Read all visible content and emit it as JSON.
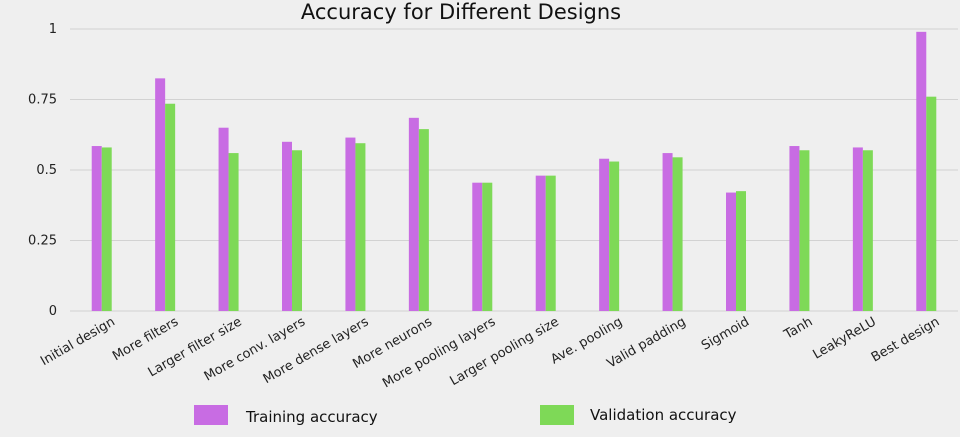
{
  "chart_data": {
    "type": "bar",
    "title": "Accuracy for Different Designs",
    "xlabel": "",
    "ylabel": "",
    "ylim": [
      0,
      1
    ],
    "yticks": [
      "0",
      "0.25",
      "0.5",
      "0.75",
      "1"
    ],
    "grid": true,
    "legend_position": "bottom",
    "categories": [
      "Initial design",
      "More filters",
      "Larger filter size",
      "More conv. layers",
      "More dense layers",
      "More neurons",
      "More pooling layers",
      "Larger pooling size",
      "Ave. pooling",
      "Valid padding",
      "Sigmoid",
      "Tanh",
      "LeakyReLU",
      "Best design"
    ],
    "series": [
      {
        "name": "Training accuracy",
        "color": "#c86ce3",
        "values": [
          0.585,
          0.825,
          0.65,
          0.6,
          0.615,
          0.685,
          0.455,
          0.48,
          0.54,
          0.56,
          0.42,
          0.585,
          0.58,
          0.99
        ]
      },
      {
        "name": "Validation accuracy",
        "color": "#7ed957",
        "values": [
          0.58,
          0.735,
          0.56,
          0.57,
          0.595,
          0.645,
          0.455,
          0.48,
          0.53,
          0.545,
          0.425,
          0.57,
          0.57,
          0.76
        ]
      }
    ]
  }
}
